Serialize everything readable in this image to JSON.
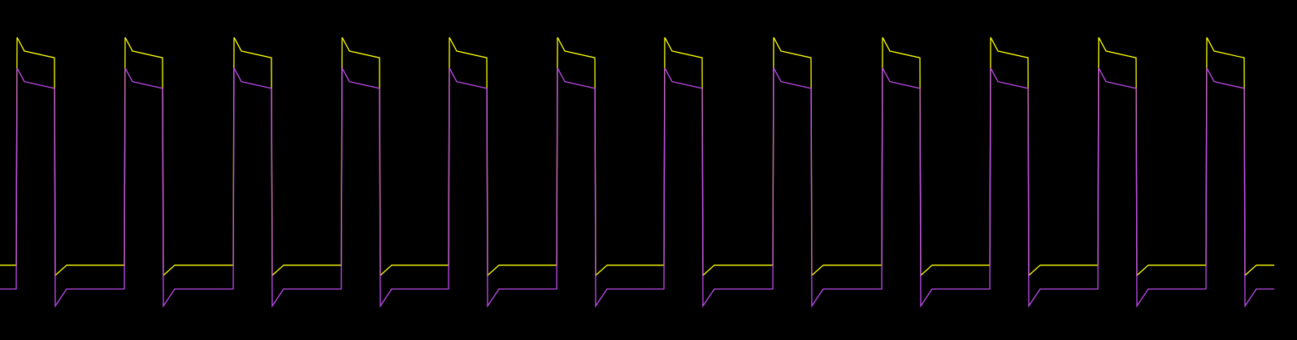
{
  "chart_data": {
    "type": "line",
    "xlim": [
      0,
      1596
    ],
    "ylim": [
      0,
      100
    ],
    "x": [
      0,
      20,
      21,
      30,
      67,
      68,
      82,
      153,
      154,
      163,
      200,
      201,
      215,
      287,
      288,
      297,
      334,
      335,
      349,
      420,
      421,
      430,
      467,
      468,
      482,
      552,
      553,
      562,
      599,
      600,
      614,
      685,
      686,
      695,
      732,
      733,
      747,
      817,
      818,
      827,
      864,
      865,
      879,
      951,
      952,
      961,
      998,
      999,
      1013,
      1085,
      1086,
      1095,
      1132,
      1133,
      1147,
      1218,
      1219,
      1228,
      1265,
      1266,
      1280,
      1351,
      1352,
      1361,
      1398,
      1399,
      1413,
      1484,
      1485,
      1494,
      1531,
      1532,
      1546,
      1568
    ],
    "series": [
      {
        "color": "#ffff00",
        "values": [
          22,
          22,
          89,
          85,
          83,
          19,
          22,
          22,
          89,
          85,
          83,
          19,
          22,
          22,
          89,
          85,
          83,
          19,
          22,
          22,
          89,
          85,
          83,
          19,
          22,
          22,
          89,
          85,
          83,
          19,
          22,
          22,
          89,
          85,
          83,
          19,
          22,
          22,
          89,
          85,
          83,
          19,
          22,
          22,
          89,
          85,
          83,
          19,
          22,
          22,
          89,
          85,
          83,
          19,
          22,
          22,
          89,
          85,
          83,
          19,
          22,
          22,
          89,
          85,
          83,
          19,
          22,
          22,
          89,
          85,
          83,
          19,
          22,
          22
        ]
      },
      {
        "color": "#c04cf0",
        "values": [
          15,
          15,
          80,
          76,
          74,
          10,
          15,
          15,
          80,
          76,
          74,
          10,
          15,
          15,
          80,
          76,
          74,
          10,
          15,
          15,
          80,
          76,
          74,
          10,
          15,
          15,
          80,
          76,
          74,
          10,
          15,
          15,
          80,
          76,
          74,
          10,
          15,
          15,
          80,
          76,
          74,
          10,
          15,
          15,
          80,
          76,
          74,
          10,
          15,
          15,
          80,
          76,
          74,
          10,
          15,
          15,
          80,
          76,
          74,
          10,
          15,
          15,
          80,
          76,
          74,
          10,
          15,
          15,
          80,
          76,
          74,
          10,
          15,
          15
        ]
      }
    ]
  }
}
